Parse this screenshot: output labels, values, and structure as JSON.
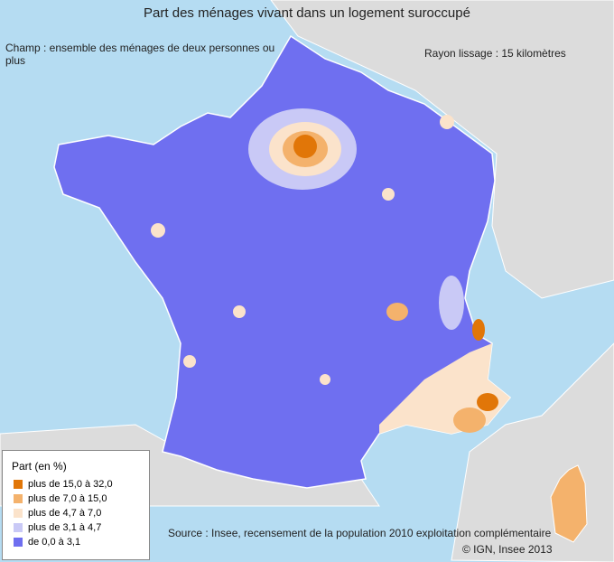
{
  "title": "Part des ménages vivant dans un logement suroccupé",
  "scope": "Champ : ensemble des ménages de deux personnes ou plus",
  "smoothing": "Rayon lissage :  15 kilomètres",
  "legend": {
    "title": "Part (en %)",
    "items": [
      {
        "label": "plus de 15,0 à 32,0",
        "color": "#e17608"
      },
      {
        "label": "plus de 7,0 à 15,0",
        "color": "#f4b26c"
      },
      {
        "label": "plus de 4,7 à 7,0",
        "color": "#fbe3cb"
      },
      {
        "label": "plus de 3,1 à 4,7",
        "color": "#c9c9f6"
      },
      {
        "label": "de 0,0 à 3,1",
        "color": "#6f6ff0"
      }
    ]
  },
  "source": "Source : Insee, recensement de la population 2010 exploitation complémentaire",
  "copyright": "© IGN, Insee 2013"
}
